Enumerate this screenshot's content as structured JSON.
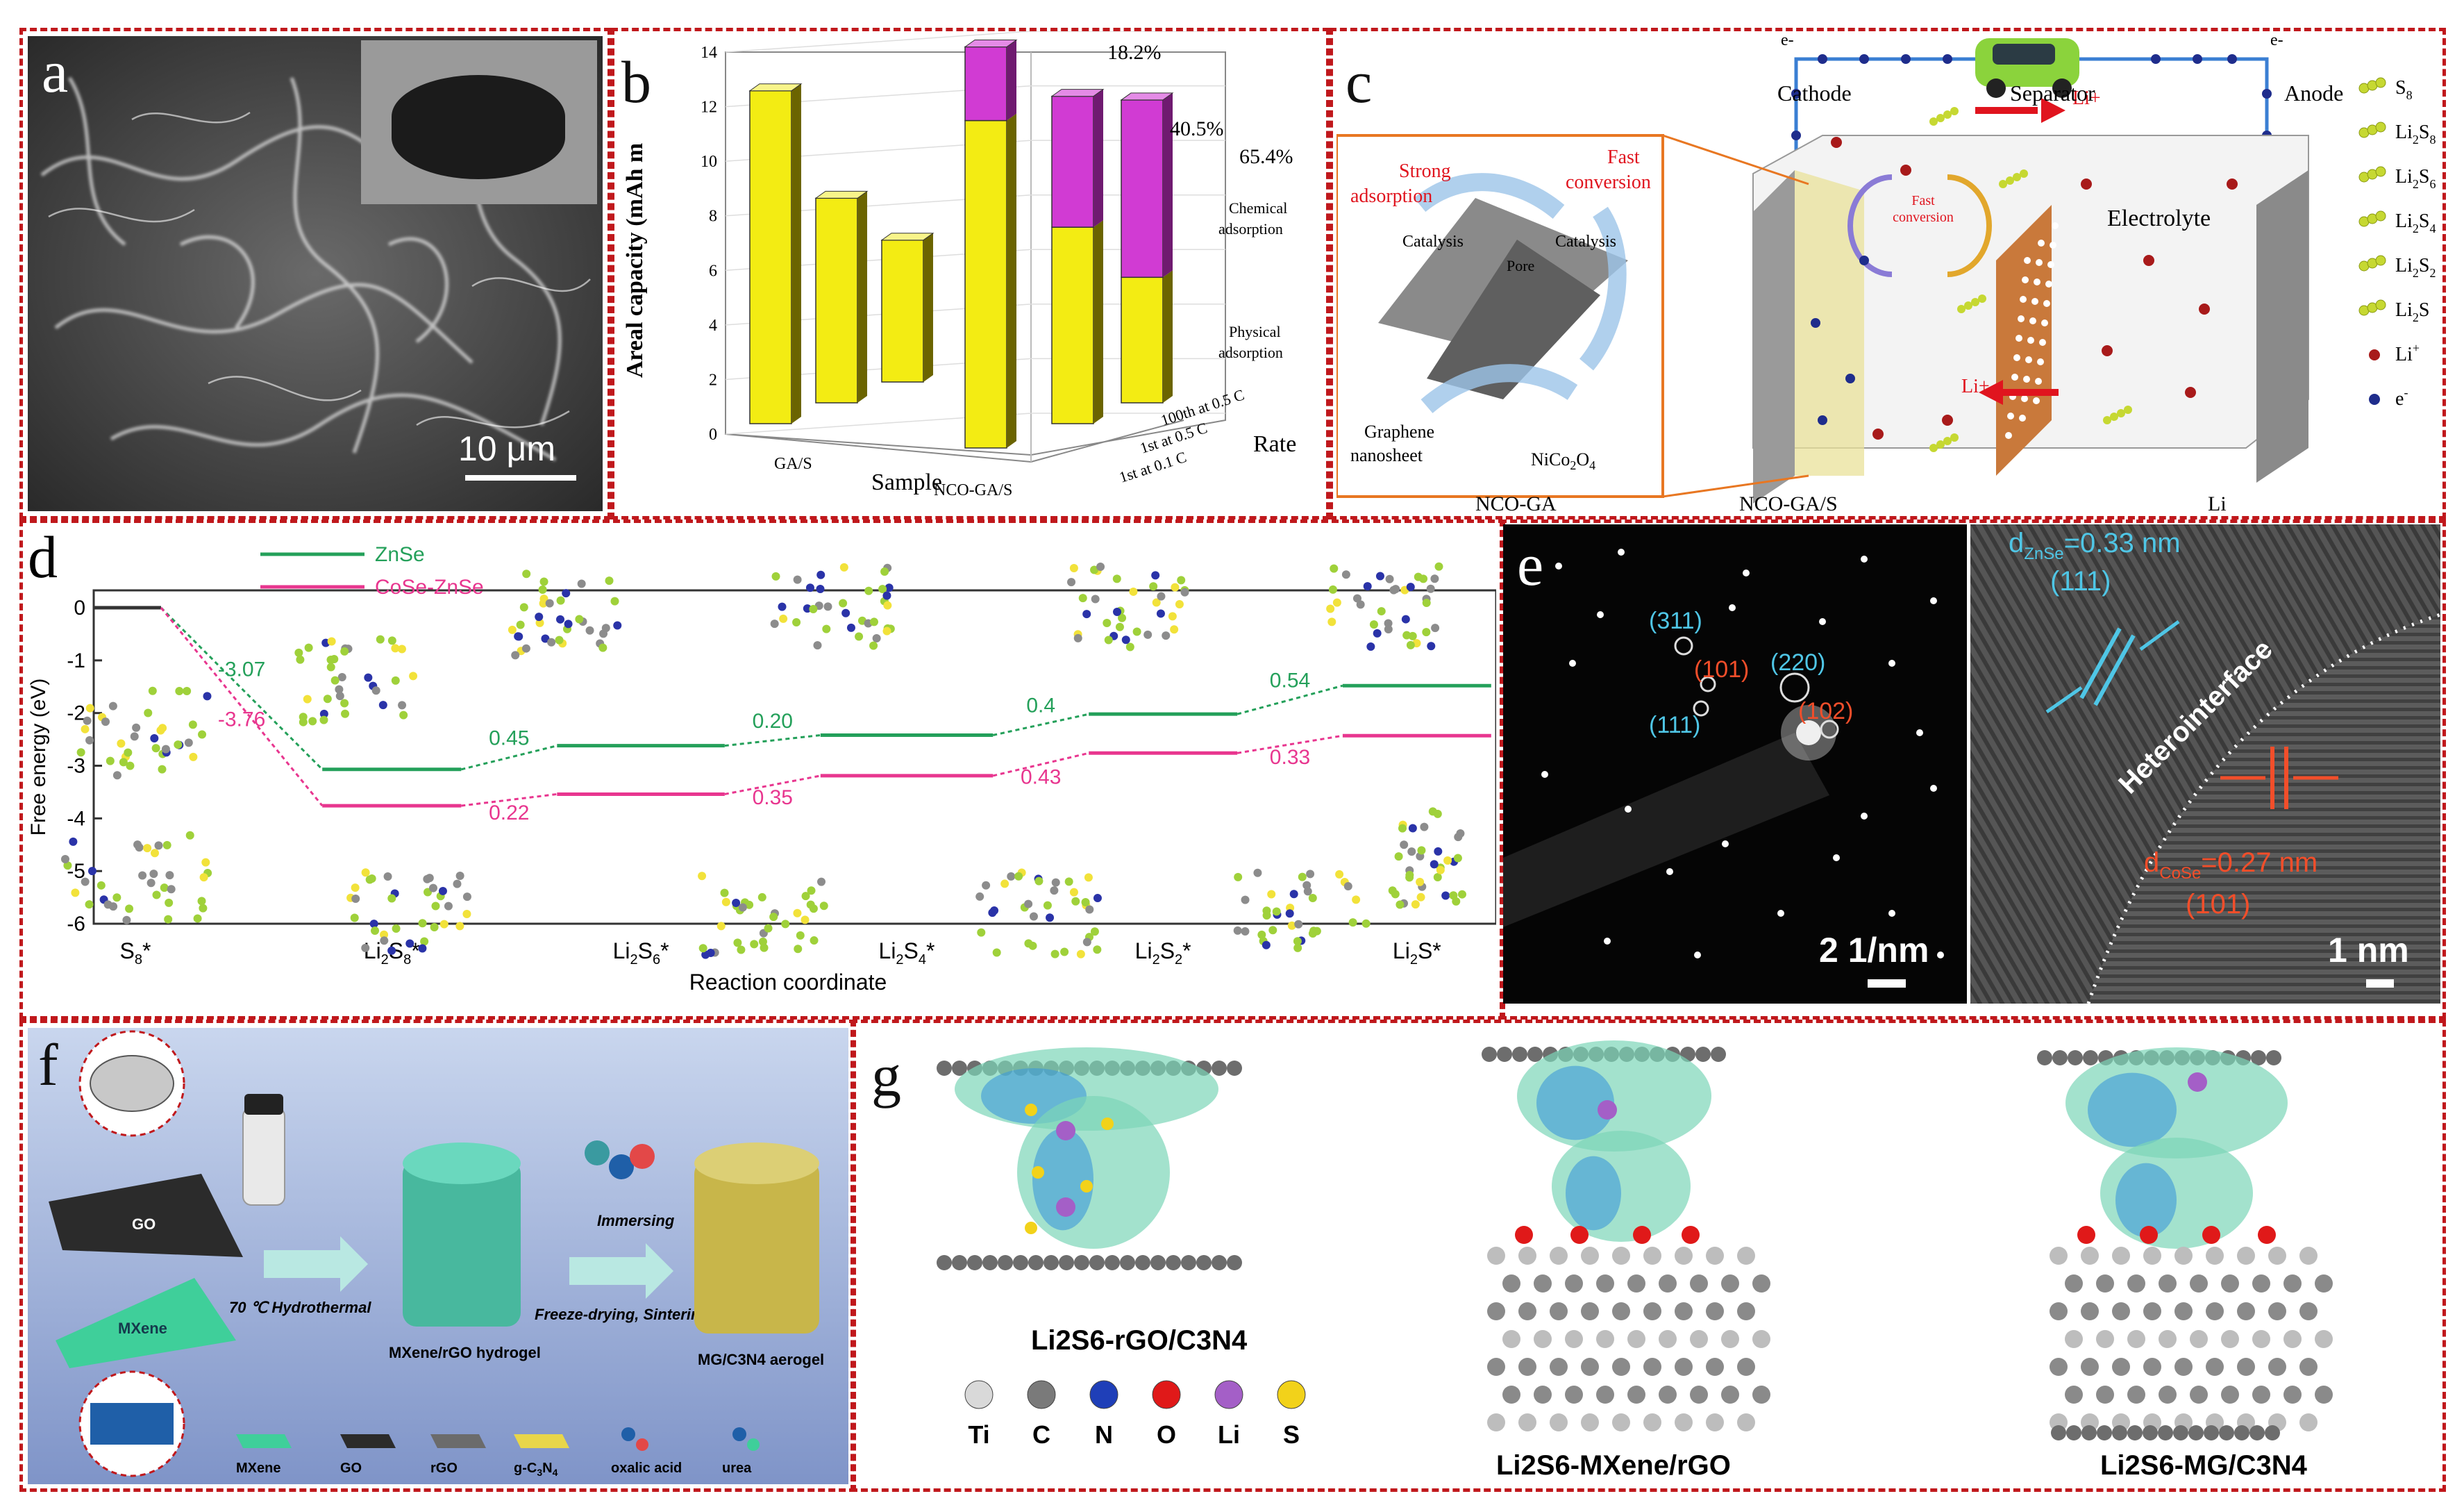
{
  "panels": {
    "a": {
      "label": "a",
      "scale_bar": "10 μm"
    },
    "b": {
      "label": "b",
      "annotations": [
        "18.2%",
        "40.5%",
        "65.4%"
      ],
      "legend": [
        "Chemical adsorption",
        "Physical adsorption"
      ],
      "rate_ticks": [
        "100th at 0.5 C",
        "1st at 0.5 C",
        "1st at 0.1 C"
      ],
      "axis_rate": "Rate",
      "axis_sample": "Sample",
      "sample_ticks": [
        "GA/S",
        "NCO-GA/S"
      ]
    },
    "c": {
      "label": "c",
      "inset_labels": {
        "strong": "Strong adsorption",
        "fast": "Fast conversion",
        "catalysis_left": "Catalysis",
        "catalysis_right": "Catalysis",
        "pore": "Pore",
        "graphene": "Graphene nanosheet",
        "nico": "NiCo2O4"
      },
      "cell_labels": {
        "cathode": "Cathode",
        "separator": "Separator",
        "anode": "Anode",
        "electrolyte": "Electrolyte",
        "fast_conversion": "Fast conversion",
        "li_plus": "Li+",
        "e_left": "e-",
        "e_right": "e-"
      },
      "legend": [
        "S8",
        "Li2S8",
        "Li2S6",
        "Li2S4",
        "Li2S2",
        "Li2S",
        "Li+",
        "e-"
      ],
      "bottom_labels": [
        "NCO-GA",
        "NCO-GA/S",
        "Li"
      ],
      "colors": {
        "orange": "#e87722",
        "red": "#e0141e",
        "blue": "#3b7fd3"
      }
    },
    "d": {
      "label": "d",
      "legend": [
        "ZnSe",
        "CoSe-ZnSe"
      ],
      "ylabel": "Free energy (eV)",
      "xlabel": "Reaction coordinate",
      "colors": {
        "ZnSe": "#24a05a",
        "CoSe-ZnSe": "#e8368f"
      }
    },
    "e": {
      "label": "e",
      "saed": {
        "spots": [
          "(311)",
          "(101)",
          "(220)",
          "(111)",
          "(102)"
        ],
        "scale": "2 1/nm"
      },
      "hrtem": {
        "d_top": "d",
        "d_top_sub": "ZnSe",
        "d_top_value": "=0.33 nm",
        "plane_top": "(111)",
        "interface": "Heterointerface",
        "d_bottom": "d",
        "d_bottom_sub": "CoSe",
        "d_bottom_value": "=0.27 nm",
        "plane_bottom": "(101)",
        "scale": "1 nm"
      }
    },
    "f": {
      "label": "f",
      "labels": {
        "go": "GO",
        "mxene": "MXene",
        "hydrothermal": "70 ℃ Hydrothermal",
        "hydrogel": "MXene/rGO hydrogel",
        "immersing": "Immersing",
        "freeze": "Freeze-drying, Sintering",
        "aerogel": "MG/C3N4 aerogel"
      },
      "legend": [
        "MXene",
        "GO",
        "rGO",
        "g-C3N4",
        "oxalic acid",
        "urea"
      ]
    },
    "g": {
      "label": "g",
      "structures": [
        "Li2S6-rGO/C3N4",
        "Li2S6-MXene/rGO",
        "Li2S6-MG/C3N4"
      ],
      "atoms": [
        {
          "symbol": "Ti",
          "color": "#d9d9d9"
        },
        {
          "symbol": "C",
          "color": "#7a7a7a"
        },
        {
          "symbol": "N",
          "color": "#1f3fb8"
        },
        {
          "symbol": "O",
          "color": "#e01919"
        },
        {
          "symbol": "Li",
          "color": "#a45fc7"
        },
        {
          "symbol": "S",
          "color": "#f2d21a"
        }
      ]
    }
  },
  "chart_data": [
    {
      "type": "bar",
      "panel": "b",
      "ylabel": "Areal capacity (mAh m",
      "ylim": [
        0,
        14
      ],
      "yticks": [
        0,
        2,
        4,
        6,
        8,
        10,
        12,
        14
      ],
      "categories": [
        "GA/S 1st at 0.1 C",
        "GA/S 1st at 0.5 C",
        "GA/S 100th at 0.5 C",
        "NCO-GA/S 1st at 0.1 C",
        "NCO-GA/S 1st at 0.5 C",
        "NCO-GA/S 100th at 0.5 C"
      ],
      "series": [
        {
          "name": "Physical adsorption",
          "values": [
            12.2,
            7.5,
            5.2,
            12.0,
            7.2,
            4.6
          ]
        },
        {
          "name": "Chemical adsorption",
          "values": [
            0,
            0,
            0,
            2.7,
            4.8,
            6.5
          ]
        }
      ],
      "annotations": [
        "18.2%",
        "40.5%",
        "65.4%"
      ]
    },
    {
      "type": "line",
      "panel": "d",
      "ylabel": "Free energy (eV)",
      "xlabel": "Reaction coordinate",
      "ylim": [
        -6,
        0
      ],
      "yticks": [
        0,
        -1,
        -2,
        -3,
        -4,
        -5,
        -6
      ],
      "categories": [
        "S8*",
        "Li2S8*",
        "Li2S6*",
        "Li2S4*",
        "Li2S2*",
        "Li2S*"
      ],
      "series": [
        {
          "name": "ZnSe",
          "values": [
            0,
            -3.07,
            -2.62,
            -2.42,
            -2.02,
            -1.48
          ],
          "steps": [
            "-3.07",
            "0.45",
            "0.20",
            "0.4",
            "0.54"
          ]
        },
        {
          "name": "CoSe-ZnSe",
          "values": [
            0,
            -3.76,
            -3.54,
            -3.19,
            -2.76,
            -2.43
          ],
          "steps": [
            "-3.76",
            "0.22",
            "0.35",
            "0.43",
            "0.33"
          ]
        }
      ]
    }
  ]
}
